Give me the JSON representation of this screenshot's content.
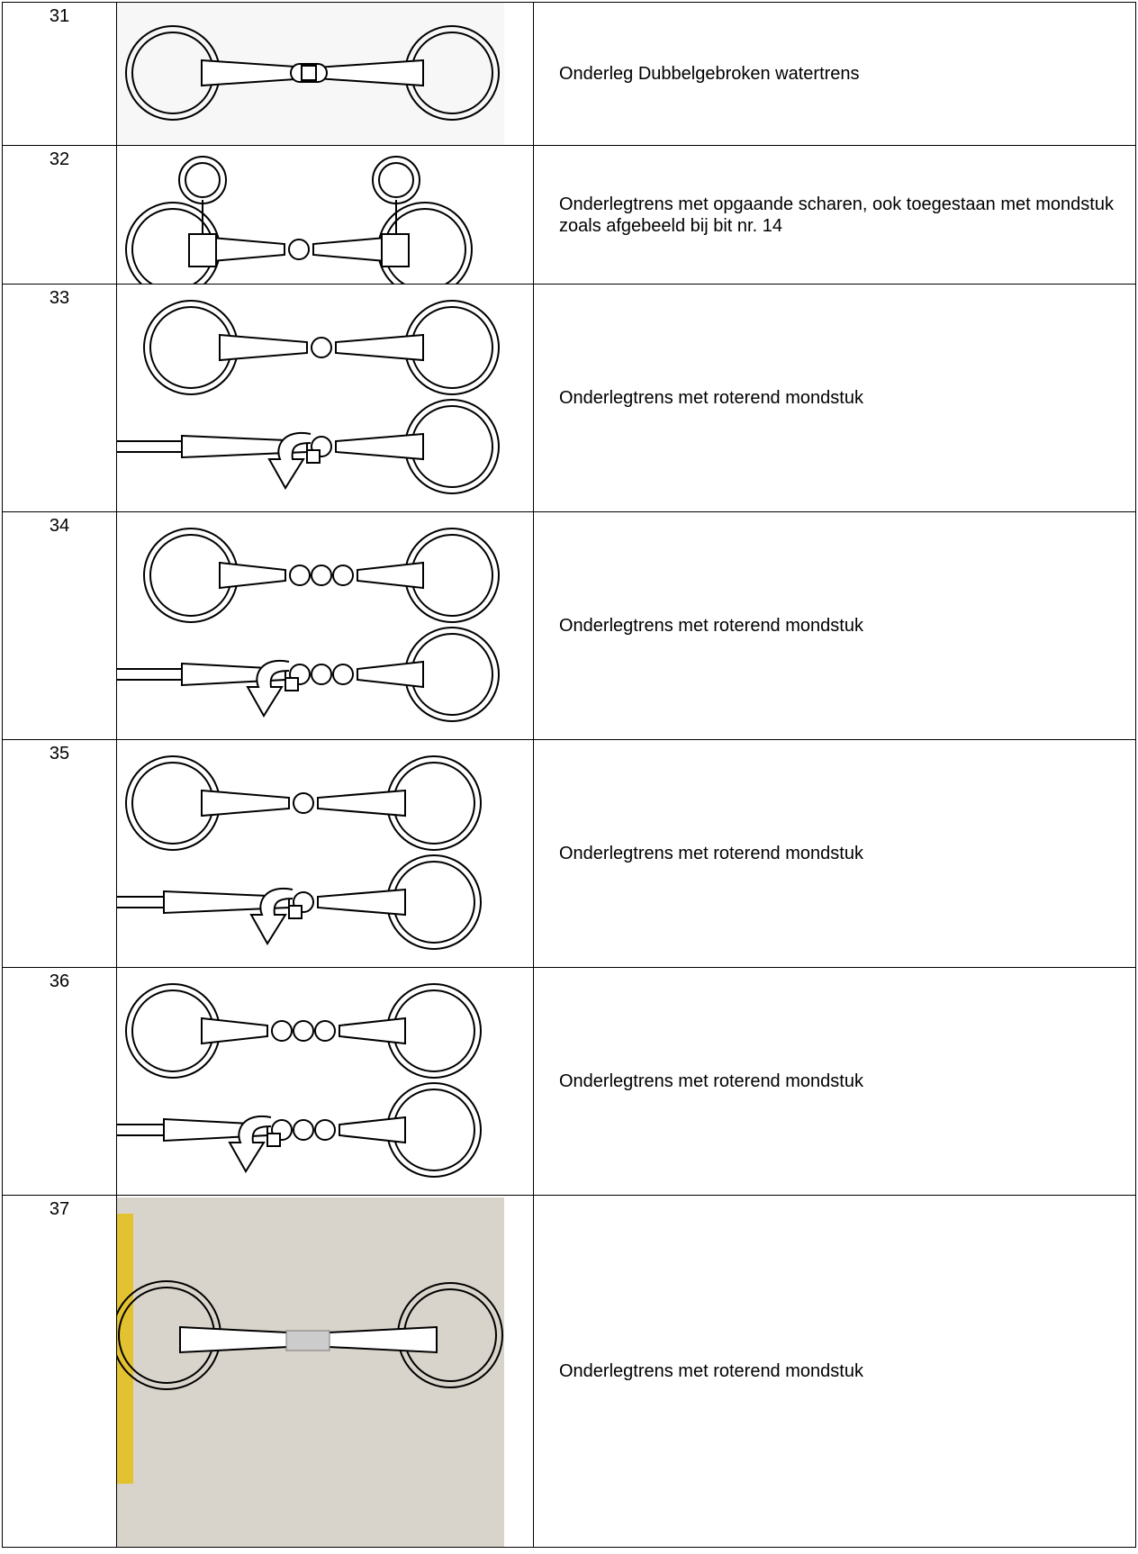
{
  "table": {
    "rows": [
      [
        "31",
        "Onderleg Dubbelgebroken watertrens"
      ],
      [
        "32",
        "Onderlegtrens met opgaande scharen, ook toegestaan met mondstuk zoals afgebeeld bij bit nr. 14"
      ],
      [
        "33",
        "Onderlegtrens  met roterend mondstuk"
      ],
      [
        "34",
        "Onderlegtrens  met roterend mondstuk"
      ],
      [
        "35",
        "Onderlegtrens met roterend mondstuk"
      ],
      [
        "36",
        "Onderlegtrens met roterend mondstuk"
      ],
      [
        "37",
        "Onderlegtrens met roterend mondstuk"
      ]
    ]
  }
}
